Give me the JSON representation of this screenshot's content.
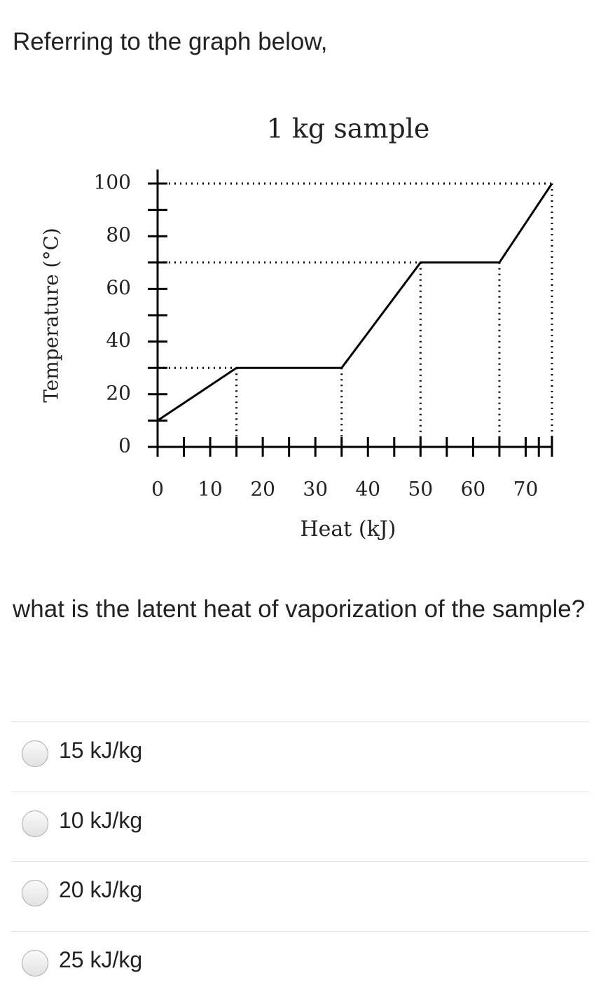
{
  "question": {
    "intro": "Referring to the graph below,",
    "prompt": "what is the latent heat of vaporization of the sample?",
    "options": [
      "15 kJ/kg",
      "10 kJ/kg",
      "20 kJ/kg",
      "25 kJ/kg"
    ]
  },
  "chart_data": {
    "type": "line",
    "title": "1 kg sample",
    "x_label": "Heat (kJ)",
    "y_label": "Temperature (°C)",
    "x": [
      0,
      15,
      35,
      50,
      65,
      75
    ],
    "values": [
      10,
      30,
      30,
      70,
      70,
      100
    ],
    "color": "#000000",
    "xlim": [
      0,
      75
    ],
    "ylim": [
      0,
      100
    ],
    "xticks": [
      0,
      10,
      20,
      30,
      40,
      50,
      60,
      70
    ],
    "yticks": [
      0,
      20,
      40,
      60,
      80,
      100
    ]
  }
}
